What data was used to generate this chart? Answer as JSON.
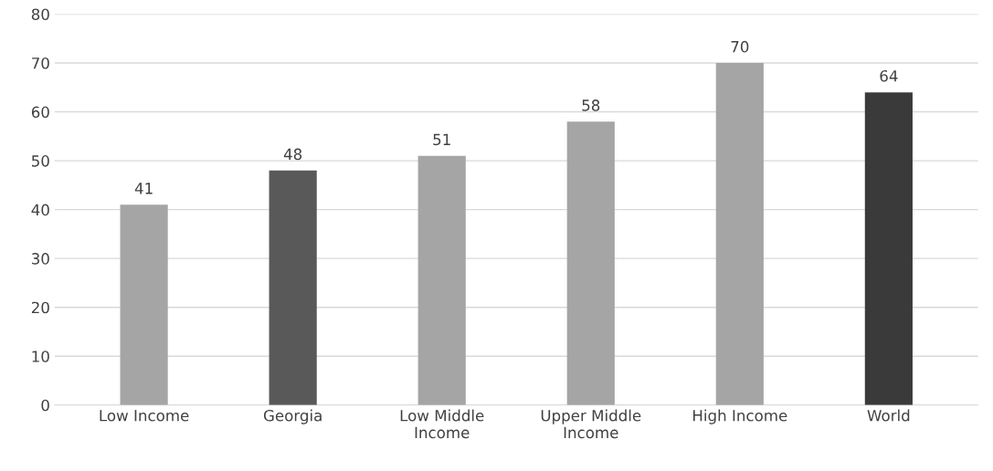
{
  "chart_data": {
    "type": "bar",
    "categories": [
      "Low Income",
      "Georgia",
      "Low Middle\nIncome",
      "Upper Middle\nIncome",
      "High Income",
      "World"
    ],
    "values": [
      41,
      48,
      51,
      58,
      70,
      64
    ],
    "colors": [
      "#a5a5a5",
      "#595959",
      "#a5a5a5",
      "#a5a5a5",
      "#a5a5a5",
      "#3a3a3a"
    ],
    "ylim": [
      0,
      80
    ],
    "yticks": [
      0,
      10,
      20,
      30,
      40,
      50,
      60,
      70,
      80
    ],
    "grid": "y",
    "data_labels": true
  }
}
